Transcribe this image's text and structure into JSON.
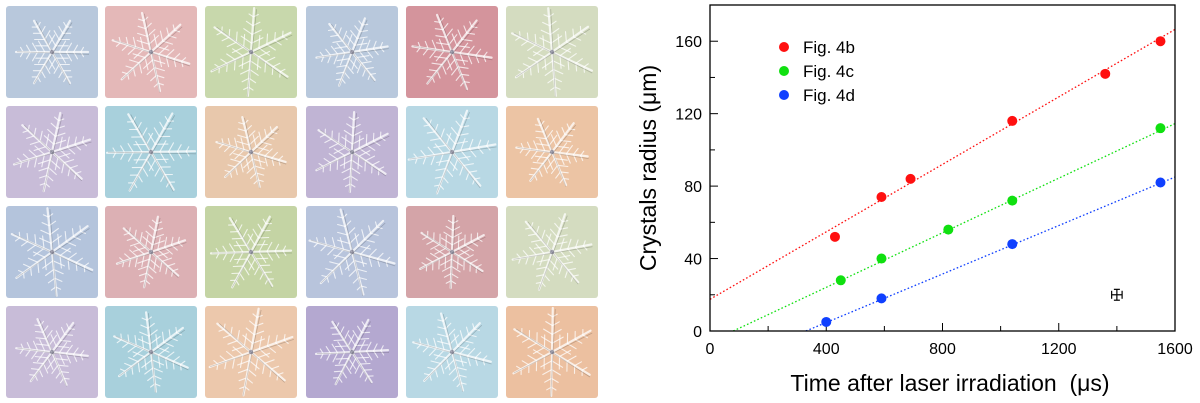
{
  "tiles": {
    "rows": [
      [
        "#b8c8dc",
        "#e4b8b8",
        "#c8d8ac",
        "#b8c8dc",
        "#d4949c",
        "#d4dcc0"
      ],
      [
        "#c8bcd8",
        "#a8d0dc",
        "#e8c8ac",
        "#c0b4d4",
        "#b8d8e4",
        "#ecc4a4"
      ],
      [
        "#b4c4dc",
        "#dcb0b4",
        "#c4d4a4",
        "#b8c4dc",
        "#d4a4a8",
        "#d4dcc0"
      ],
      [
        "#c8bcd8",
        "#a8d0dc",
        "#ecc8ac",
        "#b4a8d0",
        "#b8d8e4",
        "#ecc0a0"
      ]
    ]
  },
  "chart_data": {
    "type": "scatter",
    "xlabel": "Time after laser irradiation  (μs)",
    "ylabel": "Crystals radius (μm)",
    "xlim": [
      0,
      1600
    ],
    "ylim": [
      0,
      180
    ],
    "xticks": [
      0,
      400,
      800,
      1200,
      1600
    ],
    "yticks": [
      0,
      40,
      80,
      120,
      160
    ],
    "legend_position": "top-left",
    "series": [
      {
        "name": "Fig. 4b",
        "color": "#ff1010",
        "x": [
          430,
          590,
          690,
          1040,
          1360,
          1550
        ],
        "y": [
          52,
          74,
          84,
          116,
          142,
          160
        ],
        "fit": {
          "x": [
            0,
            1600
          ],
          "y": [
            17.5,
            166.5
          ]
        }
      },
      {
        "name": "Fig. 4c",
        "color": "#10e010",
        "x": [
          450,
          590,
          820,
          1040,
          1550
        ],
        "y": [
          28,
          40,
          56,
          72,
          112
        ],
        "fit": {
          "x": [
            80,
            1600
          ],
          "y": [
            0,
            114.5
          ]
        }
      },
      {
        "name": "Fig. 4d",
        "color": "#1040ff",
        "x": [
          400,
          590,
          1040,
          1550
        ],
        "y": [
          5,
          18,
          48,
          82
        ],
        "fit": {
          "x": [
            330,
            1600
          ],
          "y": [
            0,
            85
          ]
        }
      }
    ],
    "error_bar_sample": {
      "x": 1400,
      "y": 20,
      "xerr": 18,
      "yerr": 3
    }
  }
}
